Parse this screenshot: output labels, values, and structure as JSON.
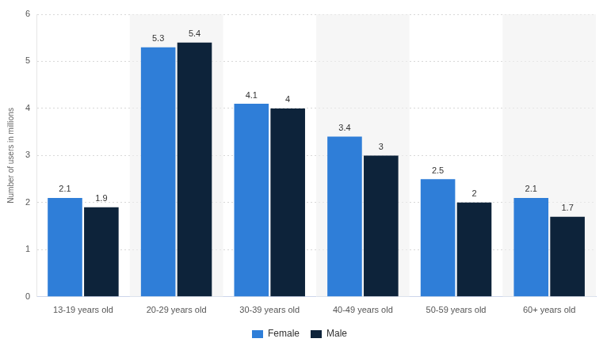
{
  "chart_data": {
    "type": "bar",
    "y_label": "Number of users in millions",
    "categories": [
      "13-19 years old",
      "20-29 years old",
      "30-39 years old",
      "40-49 years old",
      "50-59 years old",
      "60+ years old"
    ],
    "series": [
      {
        "name": "Female",
        "color": "#2f7ed8",
        "values": [
          2.1,
          5.3,
          4.1,
          3.4,
          2.5,
          2.1
        ]
      },
      {
        "name": "Male",
        "color": "#0d233a",
        "values": [
          1.9,
          5.4,
          4,
          3,
          2,
          1.7
        ]
      }
    ],
    "ylim": [
      0,
      6
    ],
    "yticks": [
      0,
      1,
      2,
      3,
      4,
      5,
      6
    ],
    "grid": true,
    "legend": "bottom",
    "data_labels": true
  }
}
